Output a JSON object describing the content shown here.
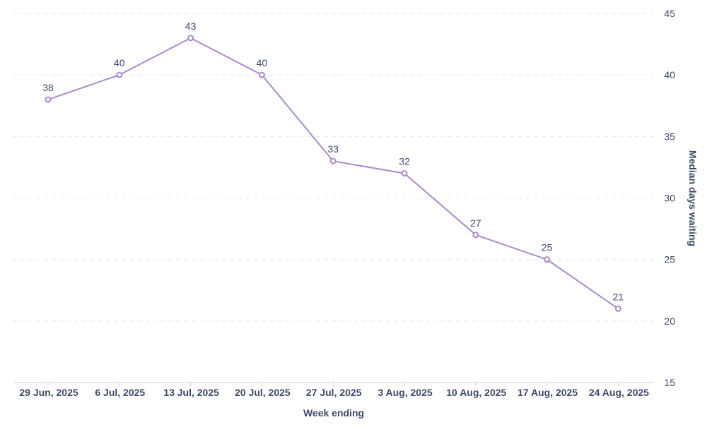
{
  "chart_data": {
    "type": "line",
    "title": "",
    "xlabel": "Week ending",
    "ylabel": "Median days waiting",
    "ylim": [
      15,
      45
    ],
    "yticks": [
      15,
      20,
      25,
      30,
      35,
      40,
      45
    ],
    "y_axis_side": "right",
    "grid": true,
    "categories": [
      "29 Jun, 2025",
      "6 Jul, 2025",
      "13 Jul, 2025",
      "20 Jul, 2025",
      "27 Jul, 2025",
      "3 Aug, 2025",
      "10 Aug, 2025",
      "17 Aug, 2025",
      "24 Aug, 2025"
    ],
    "series": [
      {
        "values": [
          38,
          40,
          43,
          40,
          33,
          32,
          27,
          25,
          21
        ],
        "color": "#a98bc9",
        "data_labels": true
      }
    ]
  },
  "colors": {
    "text": "#3f4a6b",
    "grid": "#e5e7ec",
    "axis": "#cdd1d9"
  }
}
